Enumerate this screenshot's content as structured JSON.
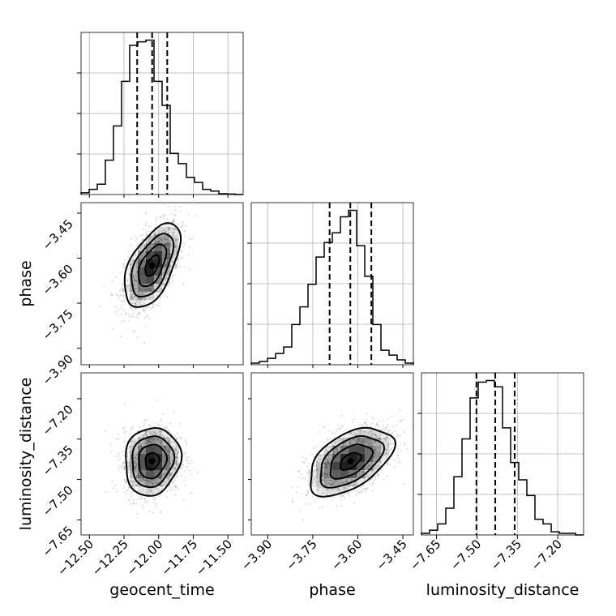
{
  "chart_data": {
    "type": "corner",
    "parameters": [
      "geocent_time",
      "phase",
      "luminosity_distance"
    ],
    "axes": {
      "geocent_time": {
        "label": "geocent_time",
        "range": [
          -12.56,
          -11.39
        ],
        "ticks": [
          -12.5,
          -12.25,
          -12.0,
          -11.75,
          -11.5
        ],
        "tick_labels": [
          "−12.50",
          "−12.25",
          "−12.00",
          "−11.75",
          "−11.50"
        ]
      },
      "phase": {
        "label": "phase",
        "range": [
          -3.955,
          -3.415
        ],
        "ticks": [
          -3.9,
          -3.75,
          -3.6,
          -3.45
        ],
        "tick_labels": [
          "−3.90",
          "−3.75",
          "−3.60",
          "−3.45"
        ]
      },
      "luminosity_distance": {
        "label": "luminosity_distance",
        "range": [
          -7.706,
          -7.104
        ],
        "ticks": [
          -7.65,
          -7.5,
          -7.35,
          -7.2
        ],
        "tick_labels": [
          "−7.65",
          "−7.50",
          "−7.35",
          "−7.20"
        ]
      }
    },
    "histograms": [
      {
        "param": "geocent_time",
        "bin_edges": [
          -12.56,
          -12.5015,
          -12.443,
          -12.3845,
          -12.326,
          -12.2675,
          -12.209,
          -12.1505,
          -12.092,
          -12.0335,
          -11.975,
          -11.9165,
          -11.858,
          -11.7995,
          -11.741,
          -11.6825,
          -11.624,
          -11.5655,
          -11.507,
          -11.4485,
          -11.39
        ],
        "counts": [
          0.01,
          0.03,
          0.06,
          0.2,
          0.4,
          0.66,
          0.87,
          0.89,
          0.9,
          0.66,
          0.52,
          0.24,
          0.18,
          0.1,
          0.07,
          0.03,
          0.02,
          0.005,
          0.003,
          0
        ],
        "quantiles": [
          -12.155,
          -12.047,
          -11.938
        ]
      },
      {
        "param": "phase",
        "bin_edges": [
          -3.955,
          -3.928,
          -3.901,
          -3.874,
          -3.847,
          -3.82,
          -3.793,
          -3.766,
          -3.739,
          -3.712,
          -3.685,
          -3.658,
          -3.631,
          -3.604,
          -3.577,
          -3.55,
          -3.523,
          -3.496,
          -3.469,
          -3.442,
          -3.415
        ],
        "counts": [
          0.01,
          0.02,
          0.04,
          0.07,
          0.11,
          0.25,
          0.36,
          0.5,
          0.67,
          0.76,
          0.82,
          0.92,
          0.96,
          0.74,
          0.55,
          0.25,
          0.09,
          0.06,
          0.03,
          0.01
        ],
        "quantiles": [
          -3.694,
          -3.625,
          -3.555
        ]
      },
      {
        "param": "luminosity_distance",
        "bin_edges": [
          -7.706,
          -7.6759,
          -7.6458,
          -7.6157,
          -7.5856,
          -7.5555,
          -7.5254,
          -7.4953,
          -7.4652,
          -7.4351,
          -7.405,
          -7.3749,
          -7.3448,
          -7.3147,
          -7.2846,
          -7.2545,
          -7.2243,
          -7.1942,
          -7.1641,
          -7.134,
          -7.104
        ],
        "counts": [
          0.01,
          0.03,
          0.07,
          0.17,
          0.37,
          0.61,
          0.87,
          0.97,
          0.98,
          0.94,
          0.68,
          0.46,
          0.35,
          0.25,
          0.1,
          0.07,
          0.02,
          0.01,
          0.01,
          0
        ],
        "quantiles": [
          -7.502,
          -7.432,
          -7.36
        ]
      }
    ],
    "joint": [
      {
        "x": "geocent_time",
        "y": "phase",
        "mean": [
          -12.047,
          -3.625
        ],
        "sd": [
          0.1,
          0.07
        ],
        "corr": 0.55
      },
      {
        "x": "geocent_time",
        "y": "luminosity_distance",
        "mean": [
          -12.047,
          -7.432
        ],
        "sd": [
          0.1,
          0.063
        ],
        "corr": 0.1
      },
      {
        "x": "phase",
        "y": "luminosity_distance",
        "mean": [
          -3.625,
          -7.432
        ],
        "sd": [
          0.07,
          0.063
        ],
        "corr": 0.5
      }
    ],
    "grid": true
  }
}
